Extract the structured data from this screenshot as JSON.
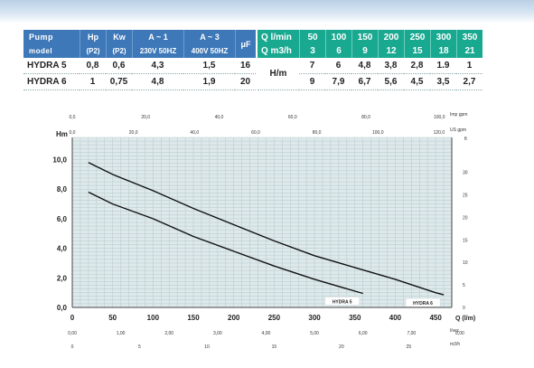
{
  "spec_table": {
    "title_line1": "Pump",
    "title_line2": "model",
    "col_headers": [
      "Hp",
      "Kw",
      "A ~ 1",
      "A ~ 3",
      "μF"
    ],
    "col_subheaders": [
      "(P2)",
      "(P2)",
      "230V 50HZ",
      "400V 50HZ"
    ],
    "rows": [
      {
        "model": "HYDRA 5",
        "hp": "0,8",
        "kw": "0,6",
        "a1": "4,3",
        "a3": "1,5",
        "uf": "16"
      },
      {
        "model": "HYDRA 6",
        "hp": "1",
        "kw": "0,75",
        "a1": "4,8",
        "a3": "1,9",
        "uf": "20"
      }
    ]
  },
  "flow_table": {
    "q_lmin_label": "Q l/min",
    "q_m3h_label": "Q m3/h",
    "q_lmin": [
      "50",
      "100",
      "150",
      "200",
      "250",
      "300",
      "350"
    ],
    "q_m3h": [
      "3",
      "6",
      "9",
      "12",
      "15",
      "18",
      "21"
    ],
    "hm_label": "H/m",
    "rows": [
      {
        "values": [
          "7",
          "6",
          "4,8",
          "3,8",
          "2,8",
          "1.9",
          "1"
        ]
      },
      {
        "values": [
          "9",
          "7,9",
          "6,7",
          "5,6",
          "4,5",
          "3,5",
          "2,7"
        ]
      }
    ]
  },
  "chart_data": {
    "type": "line",
    "x_unit_label": "Q (l/m)",
    "y_unit_label": "Hm",
    "y_right_unit_label": "ft",
    "xlim": [
      0,
      470
    ],
    "ylim": [
      0,
      11.5
    ],
    "x_ticks": [
      "0",
      "50",
      "100",
      "150",
      "200",
      "250",
      "300",
      "350",
      "400",
      "450"
    ],
    "x_tick_values": [
      0,
      50,
      100,
      150,
      200,
      250,
      300,
      350,
      400,
      450
    ],
    "y_ticks": [
      "0,0",
      "2,0",
      "4,0",
      "6,0",
      "8,0",
      "10,0"
    ],
    "y_tick_values": [
      0,
      2,
      4,
      6,
      8,
      10
    ],
    "y_right_ticks": [
      "0",
      "5",
      "10",
      "15",
      "20",
      "25",
      "30"
    ],
    "top_axis_imp": {
      "label": "Imp gpm",
      "ticks": [
        "0,0",
        "20,0",
        "40,0",
        "60,0",
        "80,0",
        "100,0"
      ],
      "lpm_positions": [
        0,
        90.9,
        181.8,
        272.8,
        363.7,
        454.6
      ]
    },
    "top_axis_us": {
      "label": "US gpm",
      "ticks": [
        "0,0",
        "20,0",
        "40,0",
        "60,0",
        "80,0",
        "100,0",
        "120,0"
      ],
      "lpm_positions": [
        0,
        75.7,
        151.4,
        227.1,
        302.8,
        378.5,
        454.2
      ]
    },
    "bottom_axis_lsec": {
      "label": "l/sec",
      "ticks": [
        "0,00",
        "1,00",
        "2,00",
        "3,00",
        "4,00",
        "5,00",
        "6,00",
        "7,00",
        "8,00"
      ],
      "lpm_positions": [
        0,
        60,
        120,
        180,
        240,
        300,
        360,
        420,
        480
      ]
    },
    "bottom_axis_m3h": {
      "label": "m3/h",
      "ticks": [
        "0",
        "5",
        "10",
        "15",
        "20",
        "25"
      ],
      "lpm_positions": [
        0,
        83.3,
        166.7,
        250,
        333.3,
        416.7
      ]
    },
    "series": [
      {
        "name": "HYDRA 5",
        "x": [
          20,
          50,
          100,
          150,
          200,
          250,
          300,
          350,
          360
        ],
        "y": [
          7.8,
          7.0,
          6.0,
          4.8,
          3.8,
          2.8,
          1.9,
          1.1,
          0.95
        ]
      },
      {
        "name": "HYDRA 6",
        "x": [
          20,
          50,
          100,
          150,
          200,
          250,
          300,
          350,
          400,
          450,
          460
        ],
        "y": [
          9.8,
          9.0,
          7.9,
          6.7,
          5.6,
          4.5,
          3.5,
          2.7,
          1.9,
          1.0,
          0.85
        ]
      }
    ],
    "grid": true,
    "colors": {
      "curve": "#111111",
      "grid": "#b9c8cf",
      "plot_bg": "#dde9ea"
    }
  }
}
